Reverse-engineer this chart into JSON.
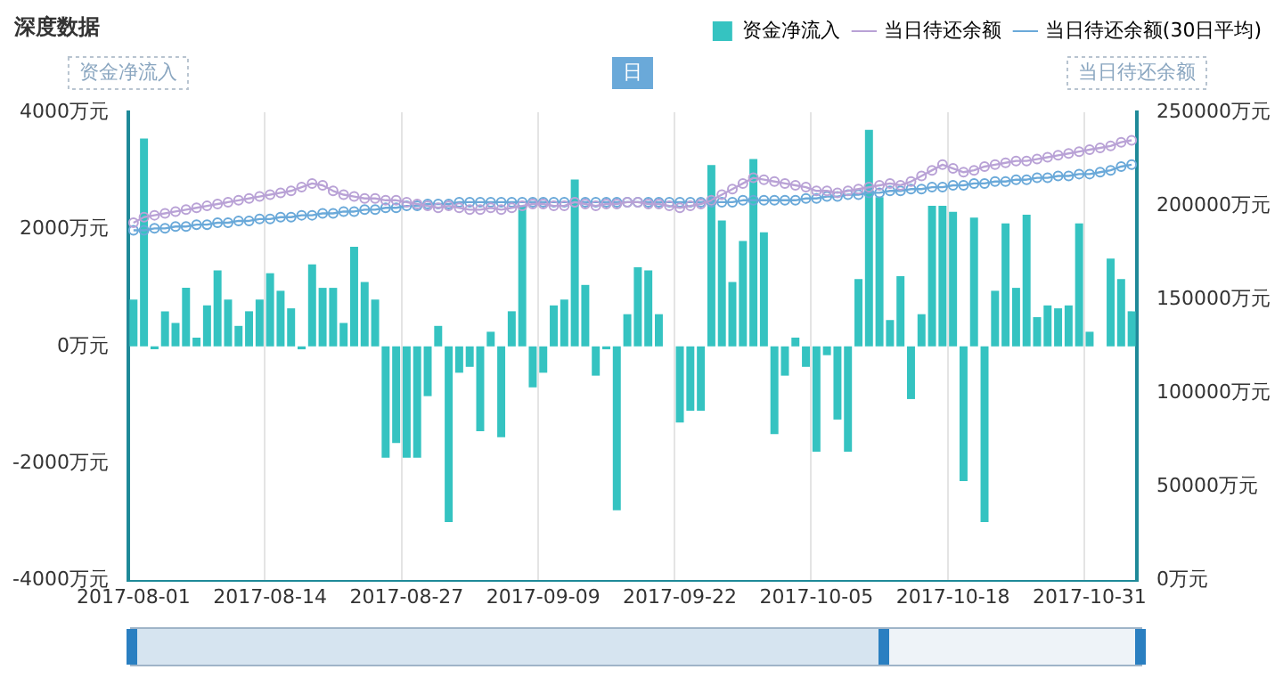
{
  "chart_data": {
    "type": "bar",
    "title": "深度数据",
    "ylabel": "资金净流入",
    "y2label": "当日待还余额",
    "annotations": [
      "日"
    ],
    "categories": [
      "2017-08-01",
      null,
      null,
      null,
      null,
      null,
      null,
      null,
      null,
      null,
      null,
      null,
      null,
      "2017-08-14",
      null,
      null,
      null,
      null,
      null,
      null,
      null,
      null,
      null,
      null,
      null,
      null,
      "2017-08-27",
      null,
      null,
      null,
      null,
      null,
      null,
      null,
      null,
      null,
      null,
      null,
      null,
      "2017-09-09",
      null,
      null,
      null,
      null,
      null,
      null,
      null,
      null,
      null,
      null,
      null,
      null,
      "2017-09-22",
      null,
      null,
      null,
      null,
      null,
      null,
      null,
      null,
      null,
      null,
      null,
      null,
      "2017-10-05",
      null,
      null,
      null,
      null,
      null,
      null,
      null,
      null,
      null,
      null,
      null,
      null,
      "2017-10-18",
      null,
      null,
      null,
      null,
      null,
      null,
      null,
      null,
      null,
      null,
      null,
      null,
      "2017-10-31",
      null,
      null,
      null,
      null
    ],
    "series": [
      {
        "name": "资金净流入",
        "color": "#35c3c1",
        "values": [
          800,
          3550,
          -50,
          600,
          400,
          1000,
          150,
          700,
          1300,
          800,
          350,
          600,
          800,
          1250,
          950,
          650,
          -50,
          1400,
          1000,
          1000,
          400,
          1700,
          1100,
          800,
          -1900,
          -1650,
          -1900,
          -1900,
          -850,
          350,
          -3000,
          -450,
          -350,
          -1450,
          250,
          -1550,
          600,
          2400,
          -700,
          -450,
          700,
          800,
          2850,
          1050,
          -500,
          -50,
          -2800,
          550,
          1350,
          1300,
          550,
          0,
          -1300,
          -1100,
          -1100,
          3100,
          2150,
          1100,
          1800,
          3200,
          1950,
          -1500,
          -500,
          150,
          -350,
          -1800,
          -150,
          -1250,
          -1800,
          1150,
          3700,
          2550,
          450,
          1200,
          -900,
          550,
          2400,
          2400,
          2300,
          -2300,
          2200,
          -3000,
          950,
          2100,
          1000,
          2250,
          500,
          700,
          650,
          700,
          2100,
          250,
          0,
          1500,
          1150,
          600
        ]
      },
      {
        "name": "当日待还余额",
        "type": "line",
        "axis": "y2",
        "color": "#b9a2d6",
        "values": [
          191000,
          194000,
          195000,
          196000,
          197000,
          198000,
          199000,
          200000,
          201000,
          202000,
          203000,
          204000,
          205000,
          206000,
          207000,
          208000,
          210000,
          212000,
          211000,
          208000,
          206000,
          205000,
          204000,
          204000,
          203000,
          203000,
          202000,
          201000,
          200000,
          199000,
          200000,
          199000,
          198000,
          198000,
          199000,
          198000,
          199000,
          200000,
          201000,
          201000,
          200000,
          200000,
          202000,
          201000,
          200000,
          201000,
          201000,
          202000,
          202000,
          201000,
          201000,
          200000,
          199000,
          200000,
          201000,
          203000,
          206000,
          209000,
          212000,
          215000,
          214000,
          213000,
          212000,
          211000,
          210000,
          208000,
          208000,
          207000,
          208000,
          209000,
          210000,
          211000,
          212000,
          211000,
          213000,
          216000,
          219000,
          222000,
          220000,
          218000,
          219000,
          221000,
          222000,
          223000,
          224000,
          224000,
          225000,
          226000,
          227000,
          228000,
          229000,
          230000,
          231000,
          232000,
          234000,
          235000
        ]
      },
      {
        "name": "当日待还余额(30日平均)",
        "type": "line",
        "axis": "y2",
        "color": "#6aa9d9",
        "values": [
          187000,
          187000,
          188000,
          188000,
          189000,
          189000,
          190000,
          190000,
          191000,
          191000,
          192000,
          192000,
          193000,
          193000,
          194000,
          194000,
          195000,
          195000,
          196000,
          196000,
          197000,
          197000,
          198000,
          198000,
          199000,
          199000,
          200000,
          200000,
          201000,
          201000,
          201000,
          202000,
          202000,
          202000,
          202000,
          202000,
          202000,
          202000,
          202000,
          202000,
          202000,
          202000,
          202000,
          202000,
          202000,
          202000,
          202000,
          202000,
          202000,
          202000,
          202000,
          202000,
          202000,
          202000,
          202000,
          202000,
          202000,
          202000,
          203000,
          203000,
          203000,
          203000,
          203000,
          203000,
          204000,
          204000,
          205000,
          205000,
          206000,
          206000,
          207000,
          207000,
          208000,
          208000,
          209000,
          209000,
          210000,
          210000,
          211000,
          211000,
          212000,
          212000,
          213000,
          213000,
          214000,
          214000,
          215000,
          215000,
          216000,
          216000,
          217000,
          217000,
          218000,
          219000,
          221000,
          222000
        ]
      }
    ],
    "ylim": [
      -4000,
      4000
    ],
    "yticks": [
      {
        "value": -4000,
        "label": "-4000万元"
      },
      {
        "value": -2000,
        "label": "-2000万元"
      },
      {
        "value": 0,
        "label": "0万元"
      },
      {
        "value": 2000,
        "label": "2000万元"
      },
      {
        "value": 4000,
        "label": "4000万元"
      }
    ],
    "y2lim": [
      0,
      250000
    ],
    "y2ticks": [
      {
        "value": 0,
        "label": "0万元"
      },
      {
        "value": 50000,
        "label": "50000万元"
      },
      {
        "value": 100000,
        "label": "100000万元"
      },
      {
        "value": 150000,
        "label": "150000万元"
      },
      {
        "value": 200000,
        "label": "200000万元"
      },
      {
        "value": 250000,
        "label": "250000万元"
      }
    ],
    "grid": "x",
    "legend": "top right",
    "marker": "circle"
  }
}
